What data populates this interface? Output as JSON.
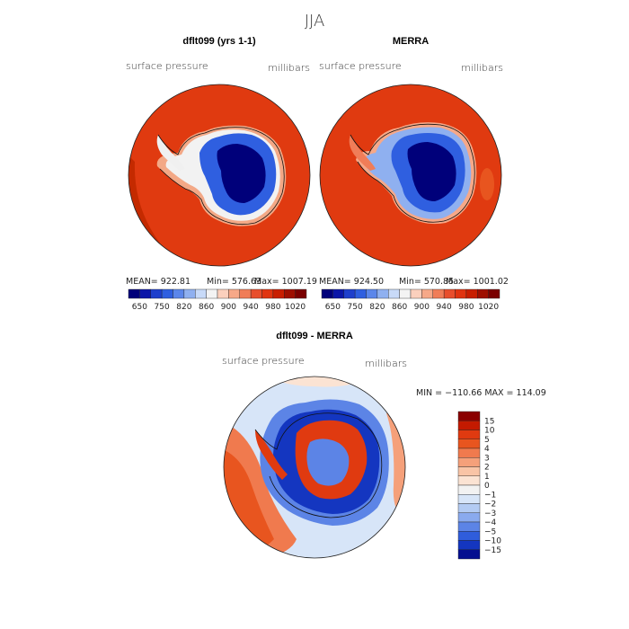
{
  "page": {
    "season": "JJA"
  },
  "chart_data": [
    {
      "type": "heatmap",
      "title": "dflt099 (yrs 1-1)",
      "variable": "surface pressure",
      "units": "millibars",
      "stats": {
        "mean": "MEAN= 922.81",
        "min": "Min= 576.63",
        "max": "Max= 1007.19"
      },
      "colorbar": {
        "levels": [
          650,
          750,
          820,
          860,
          900,
          940,
          980,
          1020
        ],
        "tick_labels": [
          "650",
          "750",
          "820",
          "860",
          "900",
          "940",
          "980",
          "1020"
        ],
        "colors": [
          "#00007a",
          "#0b16a8",
          "#1e3fcc",
          "#2f5fe0",
          "#5b86ea",
          "#8fb0f0",
          "#c8daf8",
          "#f3f3f3",
          "#fbd0bd",
          "#f6a888",
          "#f07d58",
          "#e84e2c",
          "#e03410",
          "#c81e00",
          "#9e0f00",
          "#7a0000"
        ]
      },
      "projection": "south-polar-stereographic",
      "field": {
        "land_low": "#00007a",
        "ocean": "#e03a10"
      }
    },
    {
      "type": "heatmap",
      "title": "MERRA",
      "variable": "surface pressure",
      "units": "millibars",
      "stats": {
        "mean": "MEAN= 924.50",
        "min": "Min= 570.85",
        "max": "Max= 1001.02"
      },
      "colorbar": {
        "levels": [
          650,
          750,
          820,
          860,
          900,
          940,
          980,
          1020
        ],
        "tick_labels": [
          "650",
          "750",
          "820",
          "860",
          "900",
          "940",
          "980",
          "1020"
        ],
        "colors": [
          "#00007a",
          "#0b16a8",
          "#1e3fcc",
          "#2f5fe0",
          "#5b86ea",
          "#8fb0f0",
          "#c8daf8",
          "#f3f3f3",
          "#fbd0bd",
          "#f6a888",
          "#f07d58",
          "#e84e2c",
          "#e03410",
          "#c81e00",
          "#9e0f00",
          "#7a0000"
        ]
      },
      "projection": "south-polar-stereographic",
      "field": {
        "land_low": "#00007a",
        "ocean": "#e03a10"
      }
    },
    {
      "type": "heatmap",
      "title": "dflt099 - MERRA",
      "variable": "surface pressure",
      "units": "millibars",
      "stats": {
        "minmax": "MIN = −110.66 MAX = 114.09"
      },
      "colorbar": {
        "levels": [
          15,
          10,
          5,
          4,
          3,
          2,
          1,
          0,
          -1,
          -2,
          -3,
          -4,
          -5,
          -10,
          -15
        ],
        "tick_labels": [
          "15",
          "10",
          "5",
          "4",
          "3",
          "2",
          "1",
          "0",
          "−1",
          "−2",
          "−3",
          "−4",
          "−5",
          "−10",
          "−15"
        ],
        "colors": [
          "#8a0000",
          "#c41a00",
          "#e03a10",
          "#e8551f",
          "#f07a4e",
          "#f5a07a",
          "#f9c4a6",
          "#fbe3d3",
          "#f2f2f2",
          "#d7e5f8",
          "#b3cbf3",
          "#8aaaee",
          "#5c84e6",
          "#2f5ddc",
          "#1436c0",
          "#050f90"
        ]
      },
      "projection": "south-polar-stereographic"
    }
  ]
}
